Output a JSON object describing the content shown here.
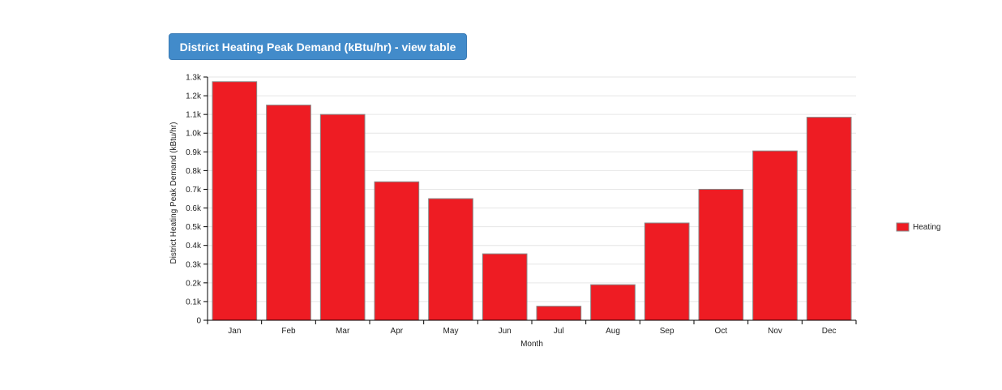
{
  "header": {
    "title_button_label": "District Heating Peak Demand (kBtu/hr) - view table"
  },
  "chart_data": {
    "type": "bar",
    "categories": [
      "Jan",
      "Feb",
      "Mar",
      "Apr",
      "May",
      "Jun",
      "Jul",
      "Aug",
      "Sep",
      "Oct",
      "Nov",
      "Dec"
    ],
    "series": [
      {
        "name": "Heating",
        "values": [
          1275,
          1150,
          1100,
          740,
          650,
          355,
          75,
          190,
          520,
          700,
          905,
          1085
        ],
        "color": "#ee1c23"
      }
    ],
    "xlabel": "Month",
    "ylabel": "District Heating Peak Demand (kBtu/hr)",
    "ylim": [
      0,
      1300
    ],
    "yticks": [
      0,
      100,
      200,
      300,
      400,
      500,
      600,
      700,
      800,
      900,
      1000,
      1100,
      1200,
      1300
    ],
    "ytick_labels": [
      "0",
      "0.1k",
      "0.2k",
      "0.3k",
      "0.4k",
      "0.5k",
      "0.6k",
      "0.7k",
      "0.8k",
      "0.9k",
      "1.0k",
      "1.1k",
      "1.2k",
      "1.3k"
    ],
    "grid": true,
    "legend_position": "right"
  }
}
